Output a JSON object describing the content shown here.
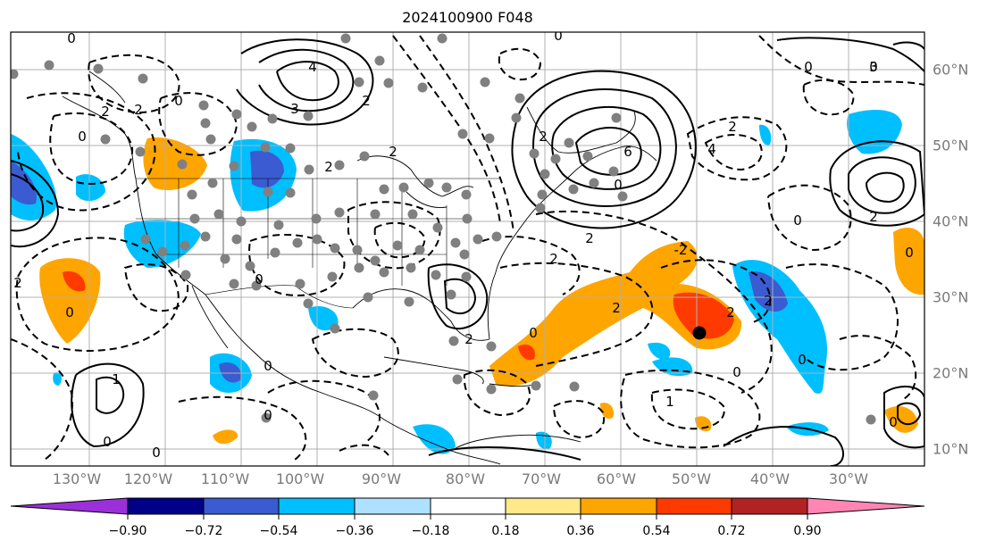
{
  "title": "2024100900 F048",
  "lon_labels": [
    "130°W",
    "120°W",
    "110°W",
    "100°W",
    "90°W",
    "80°W",
    "70°W",
    "60°W",
    "50°W",
    "40°W",
    "30°W"
  ],
  "lat_labels": [
    "60°N",
    "50°N",
    "40°N",
    "30°N",
    "20°N",
    "10°N"
  ],
  "colorbar": {
    "ticks": [
      "−0.90",
      "−0.72",
      "−0.54",
      "−0.36",
      "−0.18",
      "0.18",
      "0.36",
      "0.54",
      "0.72",
      "0.90"
    ],
    "colors": [
      "#9b30d9",
      "#000088",
      "#3a5bd1",
      "#00bfff",
      "#aee0ff",
      "#ffffff",
      "#ffe98a",
      "#ffa500",
      "#ff3a00",
      "#b22222",
      "#ff85b3"
    ]
  },
  "contour_labels": [
    "0",
    "2",
    "2",
    "0",
    "4",
    "3",
    "2",
    "0",
    "2",
    "2",
    "0",
    "2",
    "2",
    "0",
    "6",
    "2",
    "0",
    "2",
    "4",
    "3",
    "0",
    "2",
    "0",
    "2",
    "2",
    "-2",
    "0",
    "0",
    "2",
    "1",
    "0",
    "1",
    "0",
    "0",
    "0",
    "0",
    "2",
    "0",
    "0",
    "2",
    "0",
    "0"
  ],
  "colors": {
    "positive_warm": "#ffa500",
    "positive_strong": "#ff3a00",
    "negative_light": "#00bfff",
    "negative_strong": "#3a5bd1",
    "grid": "#b0b0b0",
    "label_gray": "#7a7a7a"
  }
}
